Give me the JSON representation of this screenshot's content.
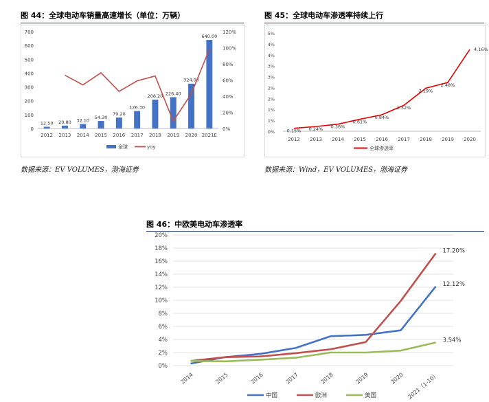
{
  "figures": [
    {
      "title": "图 44：全球电动车销量高速增长（单位：万辆）",
      "source": "数据来源：EV VOLUMES，渤海证券"
    },
    {
      "title": "图 45：全球电动车渗透率持续上行",
      "source": "数据来源：Wind，EV VOLUMES，渤海证券"
    },
    {
      "title": "图 46：中欧美电动车渗透率",
      "source": ""
    }
  ],
  "chart_data": [
    {
      "type": "bar",
      "categories": [
        "2012",
        "2013",
        "2014",
        "2015",
        "2016",
        "2017",
        "2018",
        "2019",
        "2020",
        "2021E"
      ],
      "series": [
        {
          "name": "全球",
          "type": "bar",
          "axis": "left",
          "color": "#4472c4",
          "values": [
            12.5,
            20.8,
            32.1,
            54.3,
            79.2,
            126.3,
            208.2,
            226.4,
            324.0,
            640.0
          ],
          "labels": [
            "12.50",
            "20.80",
            "32.10",
            "54.30",
            "79.20",
            "126.30",
            "208.20",
            "226.40",
            "324.00",
            "640.00"
          ]
        },
        {
          "name": "yoy",
          "type": "line",
          "axis": "right",
          "color": "#c0504d",
          "values": [
            null,
            0.66,
            0.54,
            0.69,
            0.46,
            0.59,
            0.65,
            0.09,
            0.43,
            0.98
          ]
        }
      ],
      "ylim": [
        0,
        700
      ],
      "yticks": [
        "0",
        "100",
        "200",
        "300",
        "400",
        "500",
        "600",
        "700"
      ],
      "y2lim": [
        0,
        1.2
      ],
      "y2ticks": [
        "0%",
        "20%",
        "40%",
        "60%",
        "80%",
        "100%",
        "120%"
      ],
      "legend": "bottom"
    },
    {
      "type": "line",
      "categories": [
        "2012",
        "2013",
        "2014",
        "2015",
        "2016",
        "2017",
        "2018",
        "2019",
        "2020"
      ],
      "series": [
        {
          "name": "全球渗透率",
          "color": "#e00000",
          "values": [
            0.15,
            0.24,
            0.36,
            0.61,
            0.84,
            1.32,
            2.19,
            2.48,
            4.16
          ],
          "labels": [
            "0.15%",
            "0.24%",
            "0.36%",
            "0.61%",
            "0.84%",
            "1.32%",
            "2.19%",
            "2.48%",
            "4.16%"
          ]
        }
      ],
      "ylim": [
        0,
        5
      ],
      "yticks": [
        "0%",
        "1%",
        "1%",
        "2%",
        "2%",
        "3%",
        "3%",
        "4%",
        "4%",
        "5%"
      ],
      "legend": "bottom"
    },
    {
      "type": "line",
      "categories": [
        "2014",
        "2015",
        "2016",
        "2017",
        "2018",
        "2019",
        "2020",
        "2021（1-10）"
      ],
      "series": [
        {
          "name": "中国",
          "color": "#4472c4",
          "values": [
            0.3,
            1.3,
            1.8,
            2.7,
            4.5,
            4.7,
            5.4,
            12.12
          ],
          "end_label": "12.12%"
        },
        {
          "name": "欧洲",
          "color": "#c0504d",
          "values": [
            0.7,
            1.3,
            1.4,
            1.9,
            2.5,
            3.6,
            9.9,
            17.2
          ],
          "end_label": "17.20%"
        },
        {
          "name": "美国",
          "color": "#9bbb59",
          "values": [
            0.7,
            0.65,
            0.9,
            1.2,
            2.0,
            2.0,
            2.3,
            3.54
          ],
          "end_label": "3.54%"
        }
      ],
      "ylim": [
        0,
        20
      ],
      "yticks": [
        "0%",
        "2%",
        "4%",
        "6%",
        "8%",
        "10%",
        "12%",
        "14%",
        "16%",
        "18%",
        "20%"
      ],
      "legend": "bottom"
    }
  ]
}
